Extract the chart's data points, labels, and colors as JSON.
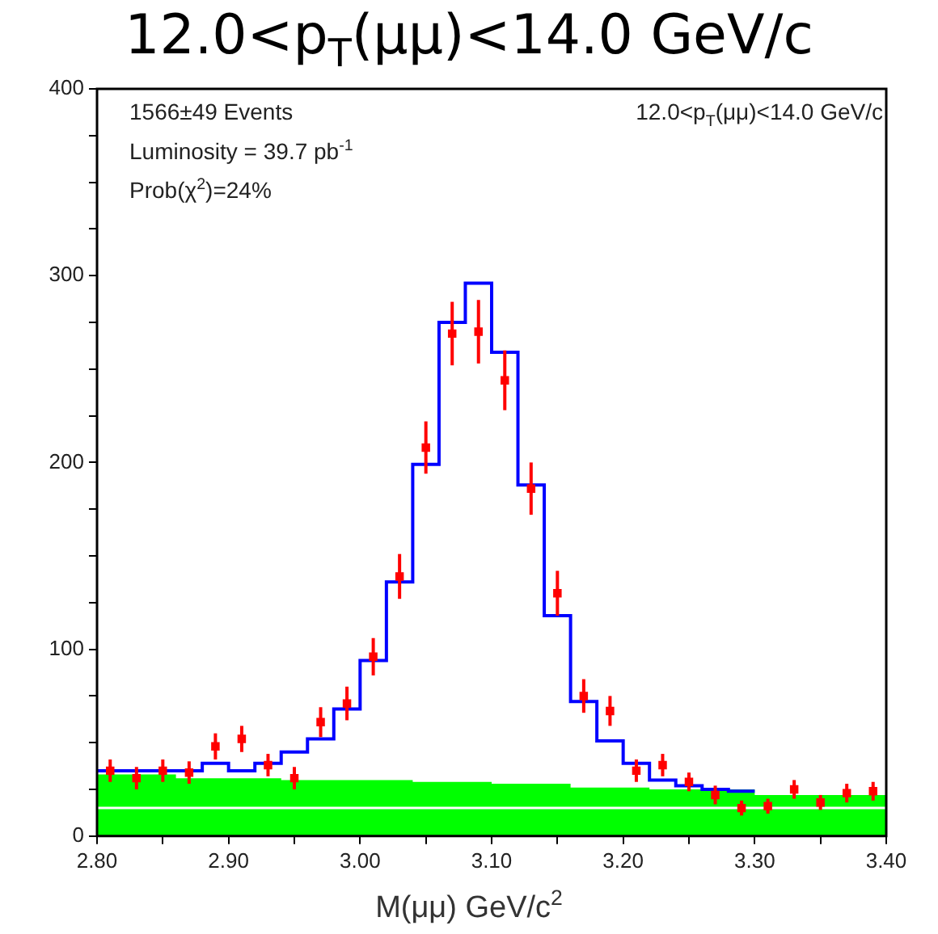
{
  "chart_data": {
    "type": "scatter",
    "title": "12.0<p$_{T}$(μμ)<14.0 GeV/c",
    "xlabel": "M(μμ) GeV/c$^{2}$",
    "annotations": [
      "1566±49 Events",
      "12.0<p$_{T}$(μμ)<14.0 GeV/c",
      "Luminosity = 39.7 pb$^{-1}$",
      "Prob(χ$^{2}$)=24%"
    ],
    "xlim": [
      2.8,
      3.4
    ],
    "xticks": [
      {
        "value": 2.8,
        "label": "2.80"
      },
      {
        "value": 2.85,
        "label": null
      },
      {
        "value": 2.9,
        "label": "2.90"
      },
      {
        "value": 2.95,
        "label": null
      },
      {
        "value": 3.0,
        "label": "3.00"
      },
      {
        "value": 3.05,
        "label": null
      },
      {
        "value": 3.1,
        "label": "3.10"
      },
      {
        "value": 3.15,
        "label": null
      },
      {
        "value": 3.2,
        "label": "3.20"
      },
      {
        "value": 3.25,
        "label": null
      },
      {
        "value": 3.3,
        "label": "3.30"
      },
      {
        "value": 3.35,
        "label": null
      },
      {
        "value": 3.4,
        "label": "3.40"
      }
    ],
    "ylim": [
      0,
      400
    ],
    "yticks": [
      0,
      {
        "value": 25,
        "label": null
      },
      {
        "value": 50,
        "label": null
      },
      {
        "value": 75,
        "label": null
      },
      100,
      {
        "value": 125,
        "label": null
      },
      {
        "value": 150,
        "label": null
      },
      {
        "value": 175,
        "label": null
      },
      200,
      {
        "value": 225,
        "label": null
      },
      {
        "value": 250,
        "label": null
      },
      {
        "value": 275,
        "label": null
      },
      300,
      {
        "value": 325,
        "label": null
      },
      {
        "value": 350,
        "label": null
      },
      {
        "value": 375,
        "label": null
      },
      400
    ],
    "grid": false,
    "legend": false,
    "ref_lines": [
      {
        "axis": "y",
        "value": 15,
        "color": "#ffffff"
      }
    ],
    "series": [
      {
        "type": "area",
        "color": "#00ff00",
        "x": [
          2.8,
          2.86,
          2.94,
          3.04,
          3.1,
          3.16,
          3.22,
          3.3,
          3.4
        ],
        "values": [
          33,
          31,
          30,
          29,
          28,
          26,
          25,
          22,
          22
        ]
      },
      {
        "type": "step",
        "color": "#0000ff",
        "x": [
          2.8,
          2.82,
          2.84,
          2.86,
          2.88,
          2.9,
          2.92,
          2.94,
          2.96,
          2.98,
          3.0,
          3.02,
          3.04,
          3.06,
          3.08,
          3.1,
          3.12,
          3.14,
          3.16,
          3.18,
          3.2,
          3.22,
          3.24,
          3.26,
          3.28,
          3.3
        ],
        "values": [
          35,
          35,
          35,
          35,
          39,
          35,
          39,
          45,
          52,
          68,
          94,
          136,
          199,
          275,
          296,
          259,
          188,
          118,
          72,
          51,
          39,
          30,
          27,
          25,
          24,
          24
        ]
      },
      {
        "color": "#ff0000",
        "marker": "square",
        "x": [
          2.81,
          2.83,
          2.85,
          2.87,
          2.89,
          2.91,
          2.93,
          2.95,
          2.97,
          2.99,
          3.01,
          3.03,
          3.05,
          3.07,
          3.09,
          3.11,
          3.13,
          3.15,
          3.17,
          3.19,
          3.21,
          3.23,
          3.25,
          3.27,
          3.29,
          3.31,
          3.33,
          3.35,
          3.37,
          3.39
        ],
        "values": [
          35,
          31,
          35,
          34,
          48,
          52,
          38,
          31,
          61,
          71,
          96,
          139,
          208,
          269,
          270,
          244,
          186,
          130,
          75,
          67,
          35,
          38,
          29,
          22,
          15,
          16,
          25,
          18,
          23,
          24
        ],
        "errors": [
          6,
          6,
          6,
          6,
          7,
          7,
          6,
          6,
          8,
          9,
          10,
          12,
          14,
          17,
          17,
          16,
          14,
          12,
          9,
          8,
          6,
          6,
          5,
          5,
          4,
          4,
          5,
          4,
          5,
          5
        ]
      }
    ]
  }
}
